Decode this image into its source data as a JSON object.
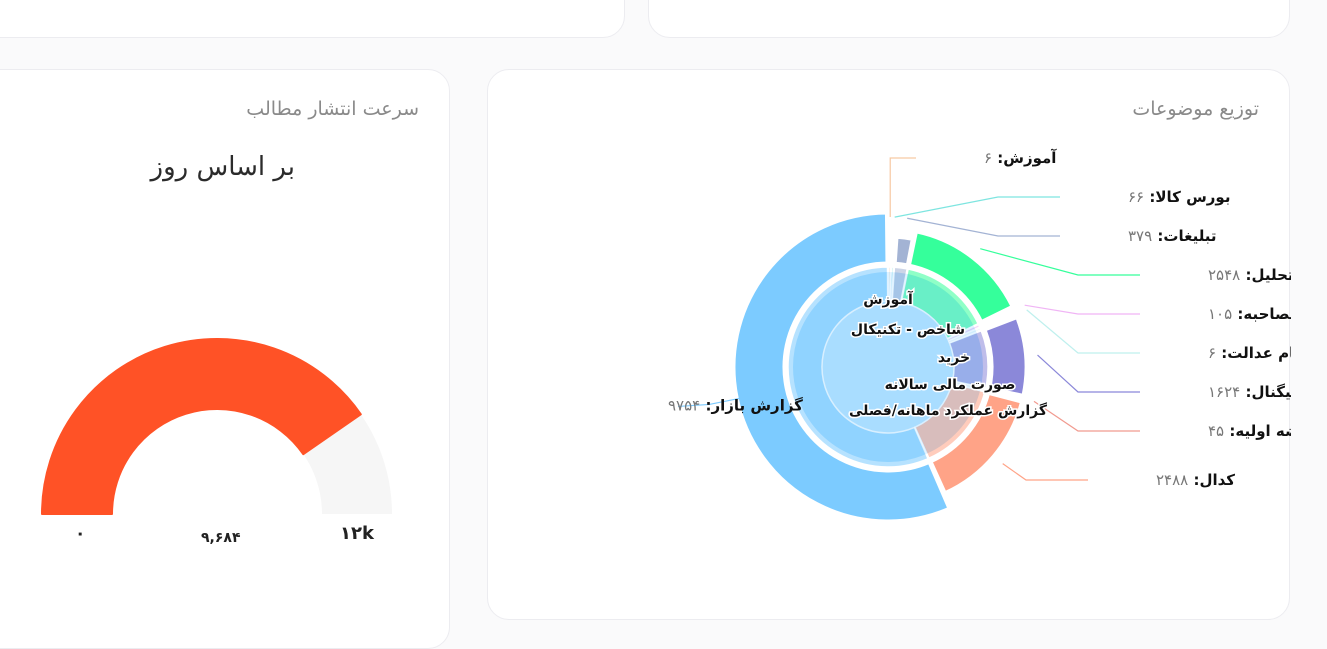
{
  "gauge_card": {
    "title": "سرعت انتشار مطالب",
    "subtitle": "بر اساس روز",
    "value": 9684,
    "value_label": "۹,۶۸۴",
    "min_label": "۰",
    "max_label": "۱۲k",
    "max": 12000,
    "fill_color": "#ff5226",
    "track_color": "#f6f6f6"
  },
  "pie_card": {
    "title": "توزیع موضوعات"
  },
  "chart_data": {
    "type": "pie",
    "outer_series": [
      {
        "name": "آموزش",
        "value": 6,
        "value_label": "۶",
        "color": "#f6c9a3"
      },
      {
        "name": "بورس کالا",
        "value": 66,
        "value_label": "۶۶",
        "color": "#7ee5e0"
      },
      {
        "name": "تبلیغات",
        "value": 379,
        "value_label": "۳۷۹",
        "color": "#a3b3d4"
      },
      {
        "name": "تحلیل",
        "value": 2548,
        "value_label": "۲۵۴۸",
        "color": "#35ff9b"
      },
      {
        "name": "خبری - مصاحبه",
        "value": 105,
        "value_label": "۱۰۵",
        "color": "#f0b5f5"
      },
      {
        "name": "سهام عدالت",
        "value": 6,
        "value_label": "۶",
        "color": "#bff0ee"
      },
      {
        "name": "سیگنال",
        "value": 1624,
        "value_label": "۱۶۲۴",
        "color": "#8b88d9"
      },
      {
        "name": "عرضه اولیه",
        "value": 45,
        "value_label": "۴۵",
        "color": "#f19a8f"
      },
      {
        "name": "کدال",
        "value": 2488,
        "value_label": "۲۴۸۸",
        "color": "#ffa387"
      },
      {
        "name": "گزارش بازار",
        "value": 9754,
        "value_label": "۹۷۵۴",
        "color": "#7ccbff"
      }
    ],
    "inner_labels": [
      "آموزش",
      "شاخص - تکنیکال",
      "خرید",
      "صورت مالی سالانه",
      "گزارش عملکرد ماهانه/فصلی"
    ]
  }
}
